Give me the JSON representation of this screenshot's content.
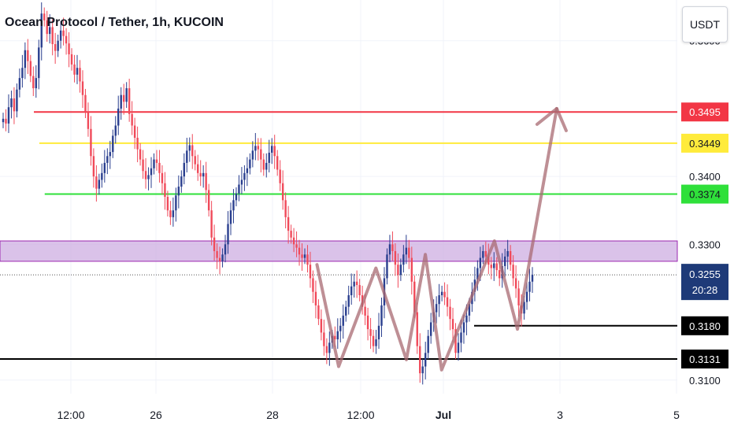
{
  "header": {
    "title": "Ocean Protocol / Tether, 1h, KUCOIN"
  },
  "currency_button": {
    "label": "USDT"
  },
  "colors": {
    "background": "#ffffff",
    "grid": "#f0f3fa",
    "up_candle": "#2a3f8f",
    "down_candle": "#f04a5a",
    "resistance_red": "#f23645",
    "resistance_yellow": "#ffeb3b",
    "support_green": "#2fe03a",
    "purple_zone_fill": "#d1b3e3",
    "purple_zone_border": "#9c27b0",
    "black_levels": "#000000",
    "projection_path": "#a86a72",
    "current_price_bg": "#1e3a78",
    "axis_text": "#131722"
  },
  "chart_data": {
    "type": "candlestick",
    "title": "Ocean Protocol / Tether, 1h, KUCOIN",
    "currency": "USDT",
    "x_tick_labels": [
      "12:00",
      "26",
      "28",
      "12:00",
      "Jul",
      "3",
      "5"
    ],
    "y_tick_labels": [
      "0.3600",
      "0.3400",
      "0.3300",
      "0.3100"
    ],
    "ylim": [
      0.308,
      0.366
    ],
    "grid": true,
    "candle_closes": [
      0.3485,
      0.3478,
      0.3502,
      0.3515,
      0.3496,
      0.3528,
      0.3545,
      0.356,
      0.3586,
      0.357,
      0.3548,
      0.353,
      0.3545,
      0.359,
      0.364,
      0.363,
      0.361,
      0.362,
      0.3595,
      0.3585,
      0.36,
      0.3615,
      0.3607,
      0.3596,
      0.358,
      0.3565,
      0.355,
      0.356,
      0.354,
      0.352,
      0.3495,
      0.347,
      0.343,
      0.34,
      0.3382,
      0.3395,
      0.3405,
      0.342,
      0.343,
      0.3436,
      0.346,
      0.3475,
      0.35,
      0.352,
      0.351,
      0.353,
      0.3492,
      0.3475,
      0.3457,
      0.344,
      0.3425,
      0.3408,
      0.3396,
      0.3402,
      0.3412,
      0.3425,
      0.342,
      0.3405,
      0.339,
      0.337,
      0.335,
      0.334,
      0.335,
      0.3372,
      0.3385,
      0.34,
      0.342,
      0.3438,
      0.3446,
      0.343,
      0.3418,
      0.3405,
      0.34,
      0.3405,
      0.338,
      0.335,
      0.331,
      0.329,
      0.328,
      0.3275,
      0.3285,
      0.33,
      0.333,
      0.335,
      0.3365,
      0.3375,
      0.3388,
      0.3395,
      0.3405,
      0.3412,
      0.3425,
      0.3438,
      0.3445,
      0.344,
      0.3425,
      0.341,
      0.342,
      0.3435,
      0.3445,
      0.343,
      0.341,
      0.339,
      0.3365,
      0.334,
      0.332,
      0.331,
      0.33,
      0.3295,
      0.3285,
      0.328,
      0.3285,
      0.327,
      0.325,
      0.323,
      0.321,
      0.319,
      0.317,
      0.315,
      0.314,
      0.3155,
      0.3165,
      0.316,
      0.3172,
      0.318,
      0.3195,
      0.3208,
      0.3225,
      0.3238,
      0.3245,
      0.324,
      0.3225,
      0.3208,
      0.3195,
      0.3175,
      0.3165,
      0.315,
      0.316,
      0.318,
      0.321,
      0.325,
      0.3285,
      0.33,
      0.329,
      0.327,
      0.3255,
      0.327,
      0.3285,
      0.3295,
      0.328,
      0.3245,
      0.32,
      0.315,
      0.311,
      0.312,
      0.314,
      0.3165,
      0.3185,
      0.32,
      0.3212,
      0.3225,
      0.323,
      0.3222,
      0.3208,
      0.319,
      0.3175,
      0.314,
      0.3155,
      0.317,
      0.3185,
      0.3195,
      0.3212,
      0.323,
      0.3248,
      0.3265,
      0.328,
      0.329,
      0.3282,
      0.327,
      0.3265,
      0.3272,
      0.3262,
      0.325,
      0.3268,
      0.3282,
      0.329,
      0.327,
      0.325,
      0.3235,
      0.321,
      0.3198,
      0.3215,
      0.323,
      0.3245,
      0.3255
    ],
    "horizontal_levels": [
      {
        "label": "0.3495",
        "value": 0.3495,
        "color": "#f23645",
        "text_color": "#ffffff",
        "line_from_x_frac": 0.05
      },
      {
        "label": "0.3449",
        "value": 0.3449,
        "color": "#ffeb3b",
        "text_color": "#131722",
        "line_from_x_frac": 0.058
      },
      {
        "label": "0.3374",
        "value": 0.3374,
        "color": "#2fe03a",
        "text_color": "#131722",
        "line_from_x_frac": 0.066
      },
      {
        "label": "0.3180",
        "value": 0.318,
        "color": "#000000",
        "text_color": "#ffffff",
        "line_from_x_frac": 0.7
      },
      {
        "label": "0.3131",
        "value": 0.3131,
        "color": "#000000",
        "text_color": "#ffffff",
        "line_from_x_frac": 0.0
      }
    ],
    "zone": {
      "top": 0.3305,
      "bottom": 0.3275,
      "color": "#d1b3e3",
      "border": "#9c27b0"
    },
    "current_price": {
      "label": "0.3255",
      "value": 0.3255,
      "countdown": "20:28"
    },
    "projection_path_points": [
      {
        "x_frac": 0.468,
        "y": 0.327
      },
      {
        "x_frac": 0.5,
        "y": 0.312
      },
      {
        "x_frac": 0.555,
        "y": 0.3265
      },
      {
        "x_frac": 0.6,
        "y": 0.313
      },
      {
        "x_frac": 0.628,
        "y": 0.3285
      },
      {
        "x_frac": 0.652,
        "y": 0.3115
      },
      {
        "x_frac": 0.73,
        "y": 0.3305
      },
      {
        "x_frac": 0.764,
        "y": 0.3175
      },
      {
        "x_frac": 0.822,
        "y": 0.35
      }
    ]
  }
}
